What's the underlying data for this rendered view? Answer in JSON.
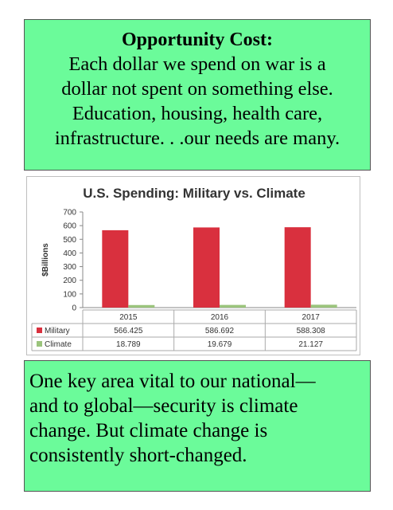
{
  "top_box": {
    "heading": "Opportunity Cost:",
    "lines": [
      "Each dollar we spend on war is a",
      "dollar not spent on something else.",
      "Education, housing, health care,",
      "infrastructure. . .our needs are many."
    ]
  },
  "bottom_box": {
    "lines": [
      "One key area vital to our national—",
      "and to global—security is climate",
      "change. But climate change is",
      "consistently short-changed."
    ]
  },
  "colors": {
    "box_background": "#6bfb9a",
    "military": "#d9303e",
    "climate": "#9bc47c"
  },
  "chart_data": {
    "type": "bar",
    "title": "U.S. Spending: Military vs. Climate",
    "ylabel": "$Billions",
    "xlabel": "",
    "ylim": [
      0,
      700
    ],
    "yticks": [
      0,
      100,
      200,
      300,
      400,
      500,
      600,
      700
    ],
    "categories": [
      "2015",
      "2016",
      "2017"
    ],
    "series": [
      {
        "name": "Military",
        "color": "#d9303e",
        "values": [
          566.425,
          586.692,
          588.308
        ],
        "labels": [
          "566.425",
          "586.692",
          "588.308"
        ]
      },
      {
        "name": "Climate",
        "color": "#9bc47c",
        "values": [
          18.789,
          19.679,
          21.127
        ],
        "labels": [
          "18.789",
          "19.679",
          "21.127"
        ]
      }
    ],
    "legend": "data-table",
    "grid": false
  }
}
